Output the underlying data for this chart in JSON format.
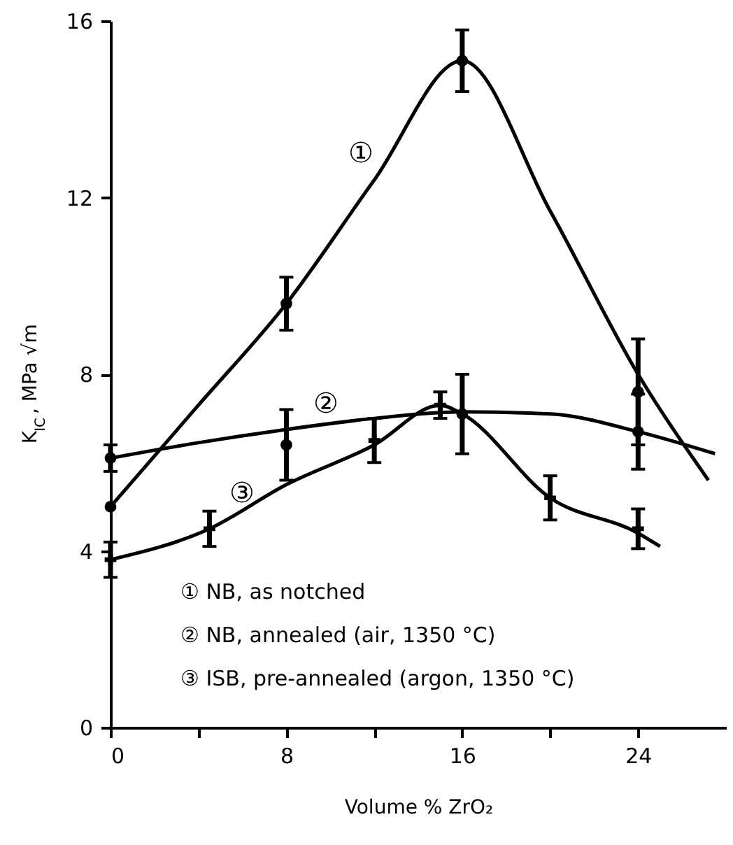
{
  "chart_data": {
    "type": "scatter",
    "xlabel": "Volume % ZrO₂",
    "ylabel": "K$_{IC}$ , MPa √m",
    "xlim": [
      0,
      28
    ],
    "xticks": [
      0,
      {
        "value": 4,
        "label": null
      },
      8,
      {
        "value": 12,
        "label": null
      },
      16,
      {
        "value": 20,
        "label": null
      },
      24
    ],
    "ylim": [
      0,
      16
    ],
    "yticks": [
      0,
      4,
      8,
      12,
      16
    ],
    "grid": false,
    "series": [
      {
        "type": "line",
        "color": "#000000",
        "x": [
          0,
          4,
          8,
          12,
          16,
          20,
          24,
          27.2
        ],
        "values": [
          5.0,
          7.3,
          9.6,
          12.4,
          15.1,
          11.7,
          8.0,
          5.6
        ],
        "marker": "none",
        "line_style": "solid"
      },
      {
        "color": "#000000",
        "x": [
          0,
          8,
          16,
          24
        ],
        "values": [
          5.0,
          9.6,
          15.1,
          7.6
        ],
        "errors": [
          null,
          0.6,
          0.7,
          1.2
        ],
        "marker": "circle"
      },
      {
        "type": "line",
        "color": "#000000",
        "x": [
          0,
          4,
          8,
          12,
          16,
          20,
          24,
          27.5
        ],
        "values": [
          6.1,
          6.45,
          6.75,
          7.0,
          7.15,
          7.1,
          6.7,
          6.2
        ],
        "marker": "none",
        "line_style": "solid"
      },
      {
        "color": "#000000",
        "x": [
          0,
          8,
          16,
          24
        ],
        "values": [
          6.1,
          6.4,
          7.1,
          6.7
        ],
        "errors": [
          0.3,
          0.8,
          0.9,
          0.85
        ],
        "marker": "circle"
      },
      {
        "type": "line",
        "color": "#000000",
        "x": [
          0,
          4.5,
          8,
          12,
          15,
          16,
          20,
          24,
          25
        ],
        "values": [
          3.8,
          4.5,
          5.5,
          6.4,
          7.3,
          7.1,
          5.2,
          4.4,
          4.1
        ],
        "marker": "none",
        "line_style": "solid"
      },
      {
        "color": "#000000",
        "x": [
          0,
          4.5,
          12,
          15,
          20,
          24
        ],
        "values": [
          3.8,
          4.5,
          6.5,
          7.3,
          5.2,
          4.5
        ],
        "errors": [
          0.4,
          0.4,
          0.5,
          0.3,
          0.5,
          0.45
        ],
        "marker": "cross"
      }
    ],
    "annotations": [
      "①",
      "②",
      "③",
      "① NB, as notched",
      "② NB, annealed (air, 1350 °C)",
      "③ ISB, pre-annealed (argon, 1350 °C)"
    ]
  }
}
